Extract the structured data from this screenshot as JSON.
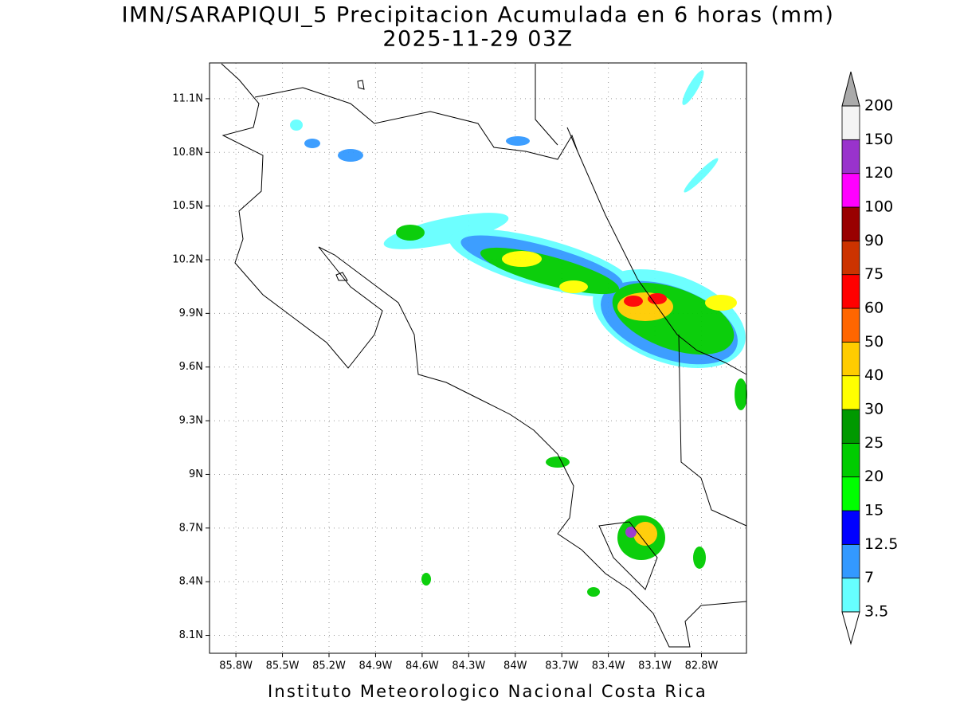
{
  "title": "IMN/SARAPIQUI_5 Precipitacion Acumulada en 6 horas (mm)",
  "subtitle": "2025-11-29 03Z",
  "footer": "Instituto Meteorologico Nacional Costa Rica",
  "map": {
    "xlim": [
      -85.97,
      -82.51
    ],
    "ylim": [
      8.0,
      11.3
    ],
    "grid": true,
    "xticks": [
      {
        "value": -85.8,
        "label": "85.8W"
      },
      {
        "value": -85.5,
        "label": "85.5W"
      },
      {
        "value": -85.2,
        "label": "85.2W"
      },
      {
        "value": -84.9,
        "label": "84.9W"
      },
      {
        "value": -84.6,
        "label": "84.6W"
      },
      {
        "value": -84.3,
        "label": "84.3W"
      },
      {
        "value": -84.0,
        "label": "84W"
      },
      {
        "value": -83.7,
        "label": "83.7W"
      },
      {
        "value": -83.4,
        "label": "83.4W"
      },
      {
        "value": -83.1,
        "label": "83.1W"
      },
      {
        "value": -82.8,
        "label": "82.8W"
      }
    ],
    "yticks": [
      {
        "value": 11.1,
        "label": "11.1N"
      },
      {
        "value": 10.8,
        "label": "10.8N"
      },
      {
        "value": 10.5,
        "label": "10.5N"
      },
      {
        "value": 10.2,
        "label": "10.2N"
      },
      {
        "value": 9.9,
        "label": "9.9N"
      },
      {
        "value": 9.6,
        "label": "9.6N"
      },
      {
        "value": 9.3,
        "label": "9.3N"
      },
      {
        "value": 9.0,
        "label": "9N"
      },
      {
        "value": 8.7,
        "label": "8.7N"
      },
      {
        "value": 8.4,
        "label": "8.4N"
      },
      {
        "value": 8.1,
        "label": "8.1N"
      }
    ]
  },
  "colorbar": {
    "levels": [
      3.5,
      7,
      12.5,
      15,
      20,
      25,
      30,
      40,
      50,
      60,
      75,
      90,
      100,
      120,
      150,
      200
    ],
    "colors": [
      "#66ffff",
      "#3399ff",
      "#0000ff",
      "#00ff00",
      "#00cc00",
      "#009900",
      "#ffff00",
      "#ffcc00",
      "#ff6600",
      "#ff0000",
      "#cc3300",
      "#990000",
      "#ff00ff",
      "#9933cc",
      "#f4f4f4"
    ],
    "under_color": "#ffffff",
    "over_color": "#aaaaaa"
  }
}
